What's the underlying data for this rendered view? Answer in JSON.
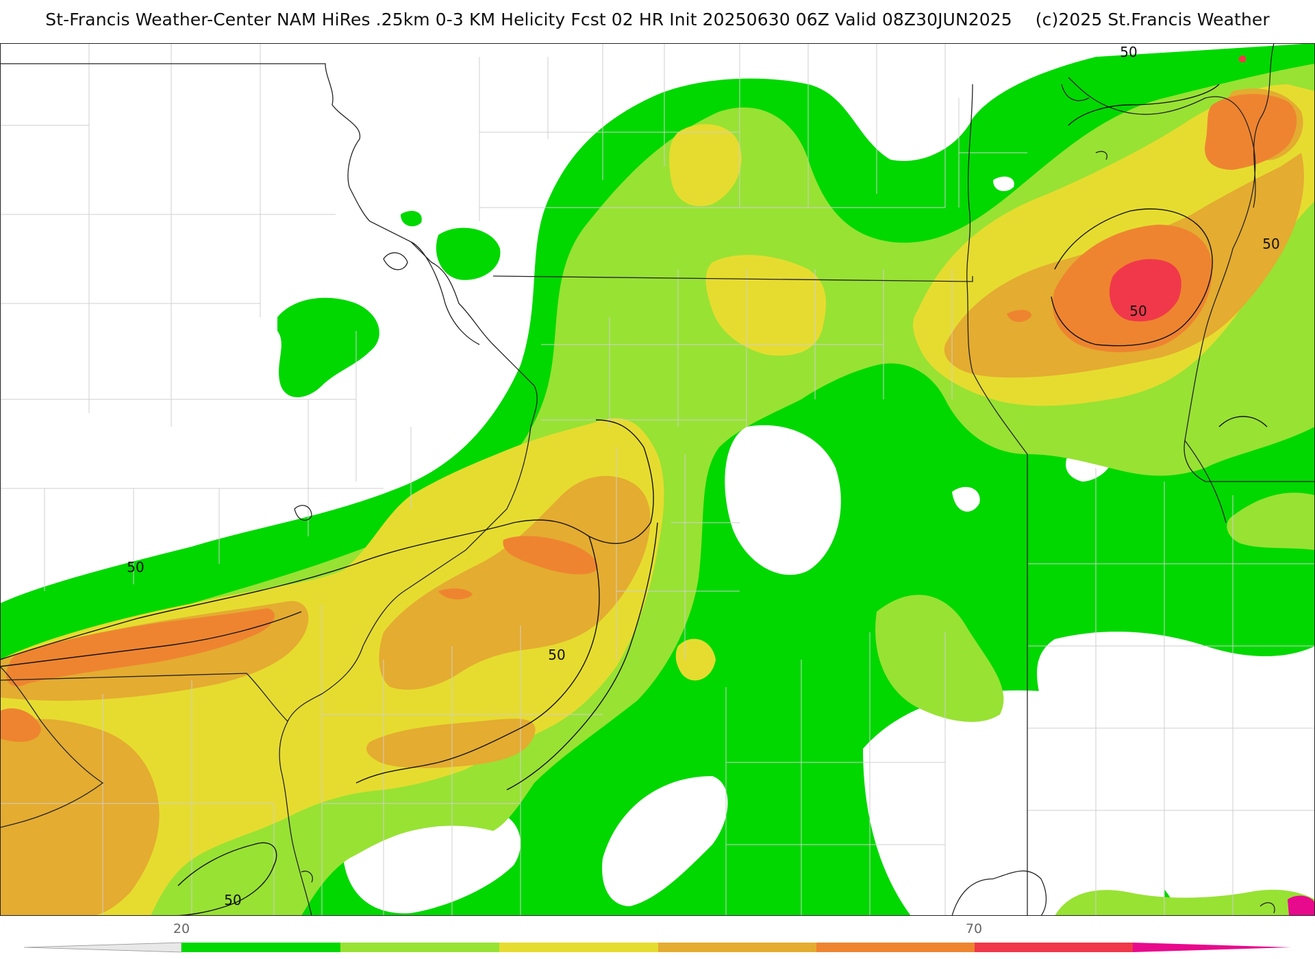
{
  "header": {
    "title": "St-Francis Weather-Center NAM HiRes .25km 0-3 KM Helicity Fcst 02 HR Init 20250630 06Z  Valid 08Z30JUN2025",
    "copyright": "(c)2025 St.Francis Weather"
  },
  "contour_labels": [
    "50",
    "50",
    "50",
    "50",
    "50",
    "50"
  ],
  "legend": {
    "tick_labels": [
      "20",
      "70"
    ],
    "colors": [
      "#e8e8e8",
      "#00d800",
      "#98e234",
      "#e6dc30",
      "#e4ac30",
      "#ee8430",
      "#f0384a",
      "#e80a8c"
    ]
  },
  "colors": {
    "level_20": "#00d800",
    "level_30": "#98e234",
    "level_40": "#e6dc30",
    "level_50": "#e4ac30",
    "level_60": "#ee8430",
    "level_70": "#f0384a",
    "level_80": "#e80a8c"
  }
}
